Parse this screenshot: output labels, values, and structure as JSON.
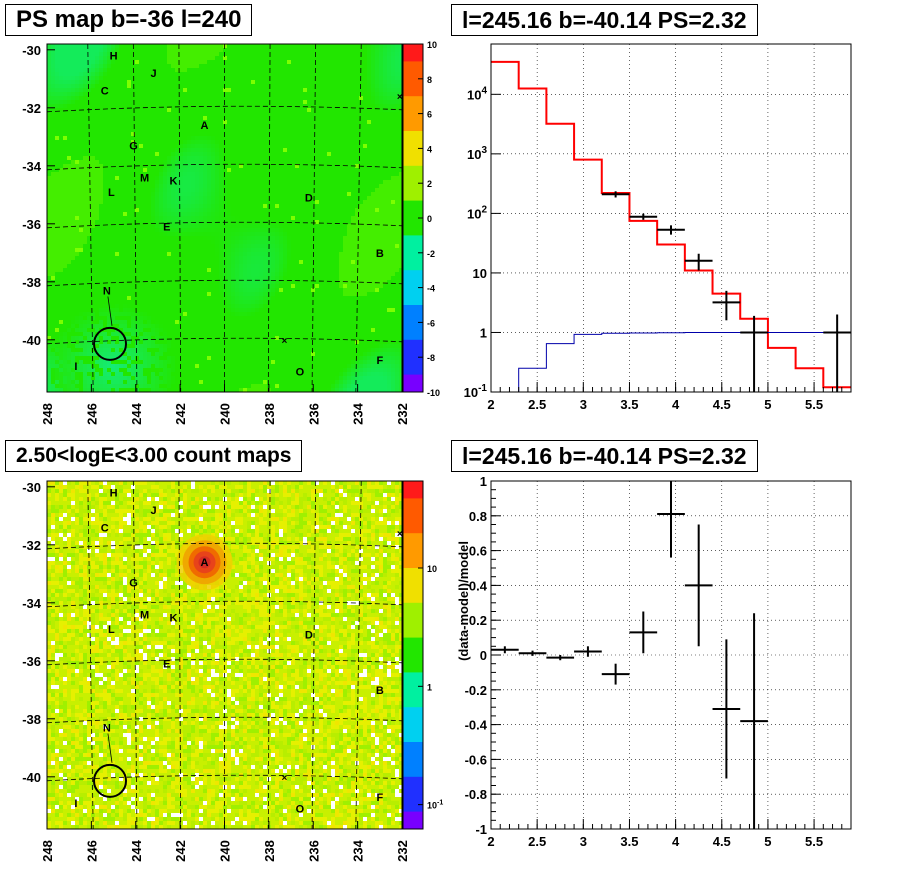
{
  "panels": {
    "top_left": {
      "title": "PS map b=-36 l=240"
    },
    "top_right": {
      "title": "l=245.16 b=-40.14 PS=2.32"
    },
    "bottom_left": {
      "title": "2.50<logE<3.00 count maps"
    },
    "bottom_right": {
      "title": "l=245.16 b=-40.14 PS=2.32"
    }
  },
  "chart_data": [
    {
      "type": "heatmap",
      "title": "PS map b=-36 l=240",
      "x_ticks": [
        "248",
        "246",
        "244",
        "242",
        "240",
        "238",
        "236",
        "234",
        "232"
      ],
      "y_ticks": [
        "-30",
        "-32",
        "-34",
        "-36",
        "-38",
        "-40"
      ],
      "xlim": [
        248,
        232
      ],
      "ylim": [
        -41.8,
        -29.8
      ],
      "colorbar": {
        "range": [
          -10,
          10
        ],
        "ticks": [
          "10",
          "8",
          "6",
          "4",
          "2",
          "0",
          "-2",
          "-4",
          "-6",
          "-8",
          "-10"
        ]
      },
      "dominant_color": "#22e600",
      "sources": [
        {
          "label": "H",
          "l": 245.0,
          "b": -30.2
        },
        {
          "label": "J",
          "l": 243.2,
          "b": -30.8
        },
        {
          "label": "C",
          "l": 245.4,
          "b": -31.4
        },
        {
          "label": "A",
          "l": 240.9,
          "b": -32.6
        },
        {
          "label": "G",
          "l": 244.1,
          "b": -33.3
        },
        {
          "label": "M",
          "l": 243.6,
          "b": -34.4
        },
        {
          "label": "K",
          "l": 242.3,
          "b": -34.5
        },
        {
          "label": "L",
          "l": 245.1,
          "b": -34.9
        },
        {
          "label": "D",
          "l": 236.2,
          "b": -35.1
        },
        {
          "label": "E",
          "l": 242.6,
          "b": -36.1
        },
        {
          "label": "B",
          "l": 233.0,
          "b": -37.0
        },
        {
          "label": "N",
          "l": 245.3,
          "b": -38.3
        },
        {
          "label": "F",
          "l": 233.0,
          "b": -40.7
        },
        {
          "label": "O",
          "l": 236.6,
          "b": -41.1
        },
        {
          "label": "I",
          "l": 246.7,
          "b": -40.9
        }
      ],
      "circle": {
        "l": 245.16,
        "b": -40.14
      }
    },
    {
      "type": "line",
      "title": "l=245.16 b=-40.14 PS=2.32",
      "x_ticks": [
        "2",
        "2.5",
        "3",
        "3.5",
        "4",
        "4.5",
        "5",
        "5.5"
      ],
      "y_ticks": [
        "10^-1",
        "1",
        "10",
        "10^2",
        "10^3",
        "10^4"
      ],
      "xlim": [
        2.0,
        5.9
      ],
      "ylim": [
        0.1,
        70000
      ],
      "log_y": true,
      "grid": true,
      "series": [
        {
          "color": "#ff0000",
          "type": "histogram",
          "edges": [
            2.0,
            2.3,
            2.6,
            2.9,
            3.2,
            3.5,
            3.8,
            4.1,
            4.4,
            4.7,
            5.0,
            5.3,
            5.6,
            5.9
          ],
          "values": [
            35000,
            12500,
            3200,
            800,
            220,
            75,
            30,
            11,
            4.5,
            1.7,
            0.55,
            0.25,
            0.12
          ]
        },
        {
          "color": "#0000aa",
          "type": "histogram",
          "edges": [
            2.0,
            2.3,
            2.6,
            2.9,
            3.2,
            3.5,
            3.8,
            4.1,
            4.4,
            4.7,
            5.0,
            5.3,
            5.6,
            5.9
          ],
          "values": [
            0.1,
            0.25,
            0.65,
            0.93,
            0.97,
            0.98,
            0.99,
            1.0,
            1.0,
            1.0,
            1.0,
            1.0,
            1.0
          ]
        },
        {
          "color": "#000000",
          "type": "errorbars",
          "points": [
            {
              "x": 3.35,
              "xerr": 0.15,
              "y": 210,
              "ylo": 185,
              "yhi": 235
            },
            {
              "x": 3.65,
              "xerr": 0.15,
              "y": 88,
              "ylo": 78,
              "yhi": 99
            },
            {
              "x": 3.95,
              "xerr": 0.15,
              "y": 53,
              "ylo": 44,
              "yhi": 63
            },
            {
              "x": 4.25,
              "xerr": 0.15,
              "y": 16,
              "ylo": 11,
              "yhi": 21
            },
            {
              "x": 4.55,
              "xerr": 0.15,
              "y": 3.2,
              "ylo": 1.6,
              "yhi": 5.0
            },
            {
              "x": 4.85,
              "xerr": 0.15,
              "y": 1.0,
              "ylo": 0.1,
              "yhi": 1.9
            },
            {
              "x": 5.75,
              "xerr": 0.15,
              "y": 1.0,
              "ylo": 0.1,
              "yhi": 2.0
            }
          ]
        }
      ]
    },
    {
      "type": "heatmap",
      "title": "2.50<logE<3.00 count maps",
      "x_ticks": [
        "248",
        "246",
        "244",
        "242",
        "240",
        "238",
        "236",
        "234",
        "232"
      ],
      "y_ticks": [
        "-30",
        "-32",
        "-34",
        "-36",
        "-38",
        "-40"
      ],
      "xlim": [
        248,
        232
      ],
      "ylim": [
        -41.8,
        -29.8
      ],
      "colorbar": {
        "log": true,
        "ticks": [
          "10",
          "1",
          "10^-1"
        ]
      },
      "dominant_color": "#c8f000",
      "hotspot": {
        "label": "A",
        "l": 240.9,
        "b": -32.6
      },
      "sources_same_as_top_map": true
    },
    {
      "type": "scatter",
      "title": "l=245.16 b=-40.14 PS=2.32",
      "ylabel": "(data-model)/model",
      "x_ticks": [
        "2",
        "2.5",
        "3",
        "3.5",
        "4",
        "4.5",
        "5",
        "5.5"
      ],
      "y_ticks": [
        "1",
        "0.8",
        "0.6",
        "0.4",
        "0.2",
        "0",
        "-0.2",
        "-0.4",
        "-0.6",
        "-0.8",
        "-1"
      ],
      "xlim": [
        2.0,
        5.9
      ],
      "ylim": [
        -1,
        1
      ],
      "grid": true,
      "points": [
        {
          "x": 2.15,
          "xerr": 0.15,
          "y": 0.03,
          "err": 0.02
        },
        {
          "x": 2.45,
          "xerr": 0.15,
          "y": 0.01,
          "err": 0.015
        },
        {
          "x": 2.75,
          "xerr": 0.15,
          "y": -0.015,
          "err": 0.015
        },
        {
          "x": 3.05,
          "xerr": 0.15,
          "y": 0.02,
          "err": 0.03
        },
        {
          "x": 3.35,
          "xerr": 0.15,
          "y": -0.11,
          "err": 0.06
        },
        {
          "x": 3.65,
          "xerr": 0.15,
          "y": 0.13,
          "err": 0.12
        },
        {
          "x": 3.95,
          "xerr": 0.15,
          "y": 0.81,
          "err": 0.25
        },
        {
          "x": 4.25,
          "xerr": 0.15,
          "y": 0.4,
          "err": 0.35
        },
        {
          "x": 4.55,
          "xerr": 0.15,
          "y": -0.31,
          "err": 0.4
        },
        {
          "x": 4.85,
          "xerr": 0.15,
          "y": -0.38,
          "err": 0.62
        }
      ]
    }
  ]
}
